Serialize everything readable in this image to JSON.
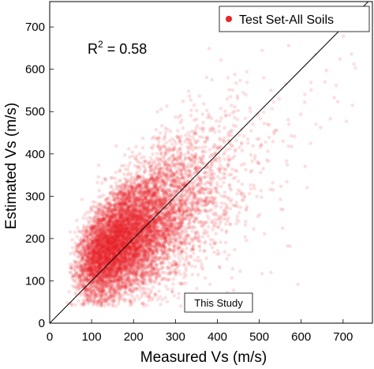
{
  "chart_data": {
    "type": "scatter",
    "title": "",
    "xlabel": "Measured Vs (m/s)",
    "ylabel": "Estimated Vs (m/s)",
    "xlim": [
      0,
      770
    ],
    "ylim": [
      0,
      760
    ],
    "xticks": [
      0,
      100,
      200,
      300,
      400,
      500,
      600,
      700
    ],
    "yticks": [
      0,
      100,
      200,
      300,
      400,
      500,
      600,
      700
    ],
    "grid": false,
    "legend_position": "top-right",
    "series": [
      {
        "name": "Test Set-All Soils",
        "color": "#e8262b",
        "marker": "circle",
        "opacity": 0.14,
        "n_points": 9000,
        "center": [
          190,
          205
        ],
        "x_range": [
          40,
          730
        ],
        "y_range": [
          40,
          680
        ]
      }
    ],
    "reference_line": {
      "x": [
        0,
        770
      ],
      "y": [
        0,
        770
      ],
      "color": "#000000",
      "label": "1:1"
    },
    "annotations": {
      "r2_label": "R",
      "r2_superscript": "2",
      "r2_value": " = 0.58",
      "study_box": "This Study"
    }
  }
}
